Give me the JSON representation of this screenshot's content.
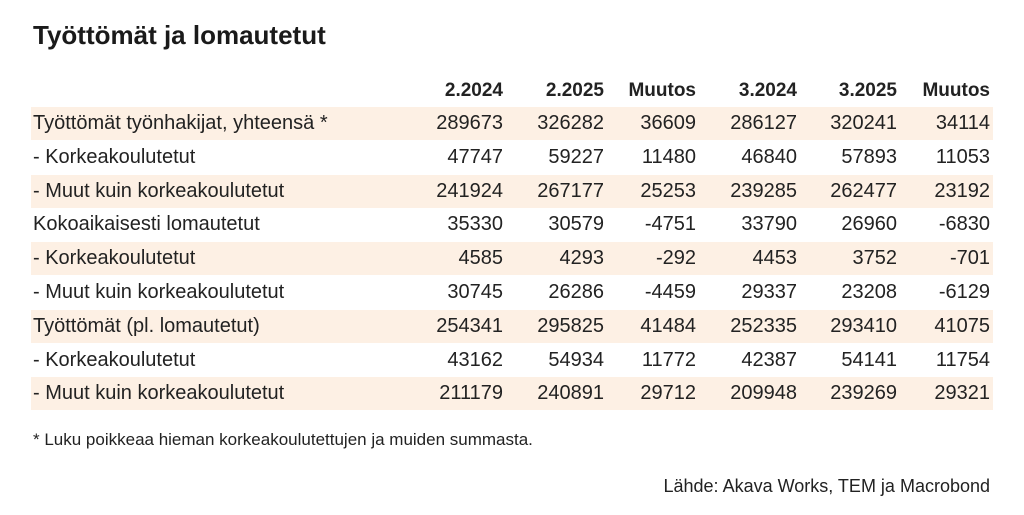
{
  "title": "Työttömät ja lomautetut",
  "table": {
    "columns": [
      "2.2024",
      "2.2025",
      "Muutos",
      "3.2024",
      "3.2025",
      "Muutos"
    ],
    "rows": [
      {
        "label": "Työttömät työnhakijat, yhteensä *",
        "values": [
          289673,
          326282,
          36609,
          286127,
          320241,
          34114
        ]
      },
      {
        "label": "- Korkeakoulutetut",
        "values": [
          47747,
          59227,
          11480,
          46840,
          57893,
          11053
        ]
      },
      {
        "label": "- Muut kuin korkeakoulutetut",
        "values": [
          241924,
          267177,
          25253,
          239285,
          262477,
          23192
        ]
      },
      {
        "label": "Kokoaikaisesti lomautetut",
        "values": [
          35330,
          30579,
          -4751,
          33790,
          26960,
          -6830
        ]
      },
      {
        "label": "- Korkeakoulutetut",
        "values": [
          4585,
          4293,
          -292,
          4453,
          3752,
          -701
        ]
      },
      {
        "label": "- Muut kuin korkeakoulutetut",
        "values": [
          30745,
          26286,
          -4459,
          29337,
          23208,
          -6129
        ]
      },
      {
        "label": "Työttömät (pl. lomautetut)",
        "values": [
          254341,
          295825,
          41484,
          252335,
          293410,
          41075
        ]
      },
      {
        "label": "- Korkeakoulutetut",
        "values": [
          43162,
          54934,
          11772,
          42387,
          54141,
          11754
        ]
      },
      {
        "label": "- Muut kuin korkeakoulutetut",
        "values": [
          211179,
          240891,
          29712,
          209948,
          239269,
          29321
        ]
      }
    ]
  },
  "footnote": "* Luku poikkeaa hieman korkeakoulutettujen ja muiden summasta.",
  "source": "Lähde: Akava Works, TEM ja Macrobond"
}
